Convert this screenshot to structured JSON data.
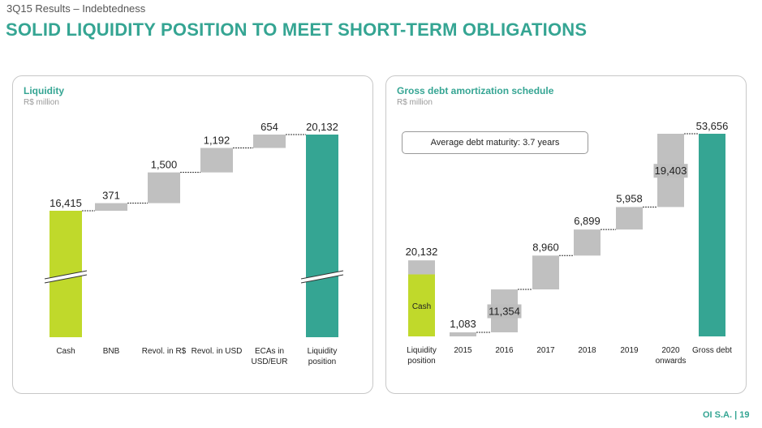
{
  "header": {
    "subtitle": "3Q15 Results – Indebtedness",
    "title": "SOLID LIQUIDITY POSITION TO MEET SHORT-TERM OBLIGATIONS"
  },
  "footer": {
    "text": "OI S.A. |  19"
  },
  "colors": {
    "accent": "#35a593",
    "cash": "#c0d92b",
    "step": "#c0c0c0"
  },
  "chart_data": [
    {
      "type": "bar",
      "subtype": "waterfall",
      "title": "Liquidity",
      "unit": "R$ million",
      "categories": [
        [
          "Cash"
        ],
        [
          "BNB"
        ],
        [
          "Revol. in R$"
        ],
        [
          "Revol. in USD"
        ],
        [
          "ECAs in",
          "USD/EUR"
        ],
        [
          "Liquidity",
          "position"
        ]
      ],
      "values": [
        16415,
        371,
        1500,
        1192,
        654,
        20132
      ],
      "labels": [
        "16,415",
        "371",
        "1,500",
        "1,192",
        "654",
        "20,132"
      ],
      "kinds": [
        "base",
        "step",
        "step",
        "step",
        "step",
        "total"
      ],
      "axis_break": true
    },
    {
      "type": "bar",
      "subtype": "waterfall",
      "title": "Gross debt amortization schedule",
      "unit": "R$ million",
      "annotation": "Average debt maturity: 3.7 years",
      "categories": [
        [
          "Liquidity",
          "position"
        ],
        [
          "2015"
        ],
        [
          "2016"
        ],
        [
          "2017"
        ],
        [
          "2018"
        ],
        [
          "2019"
        ],
        [
          "2020",
          "onwards"
        ],
        [
          "Gross debt"
        ]
      ],
      "values": [
        20132,
        1083,
        11354,
        8960,
        6899,
        5958,
        19403,
        53656
      ],
      "labels": [
        "20,132",
        "1,083",
        "11,354",
        "8,960",
        "6,899",
        "5,958",
        "19,403",
        "53,656"
      ],
      "kinds": [
        "liquidity",
        "step",
        "step",
        "step",
        "step",
        "step",
        "step",
        "total"
      ],
      "liquidity_inner_label": "Cash",
      "liquidity_cash_value": 16415
    }
  ]
}
